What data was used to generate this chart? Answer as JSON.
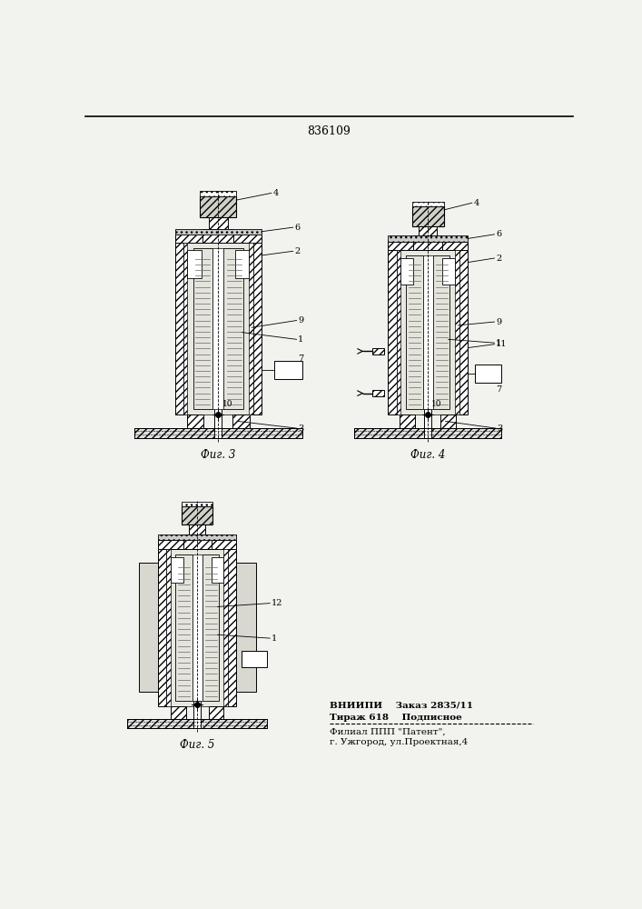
{
  "patent_number": "836109",
  "fig3_label": "Фиг. 3",
  "fig4_label": "Фиг. 4",
  "fig5_label": "Фиг. 5",
  "footer_line1": "ВНИИПИ    Заказ 2835/11",
  "footer_line2": "Тираж 618    Подписное",
  "footer_line3": "Филиал ППП \"Патент\",",
  "footer_line4": "г. Ужгород, ул.Проектная,4",
  "bg_color": "#f2f2ee"
}
